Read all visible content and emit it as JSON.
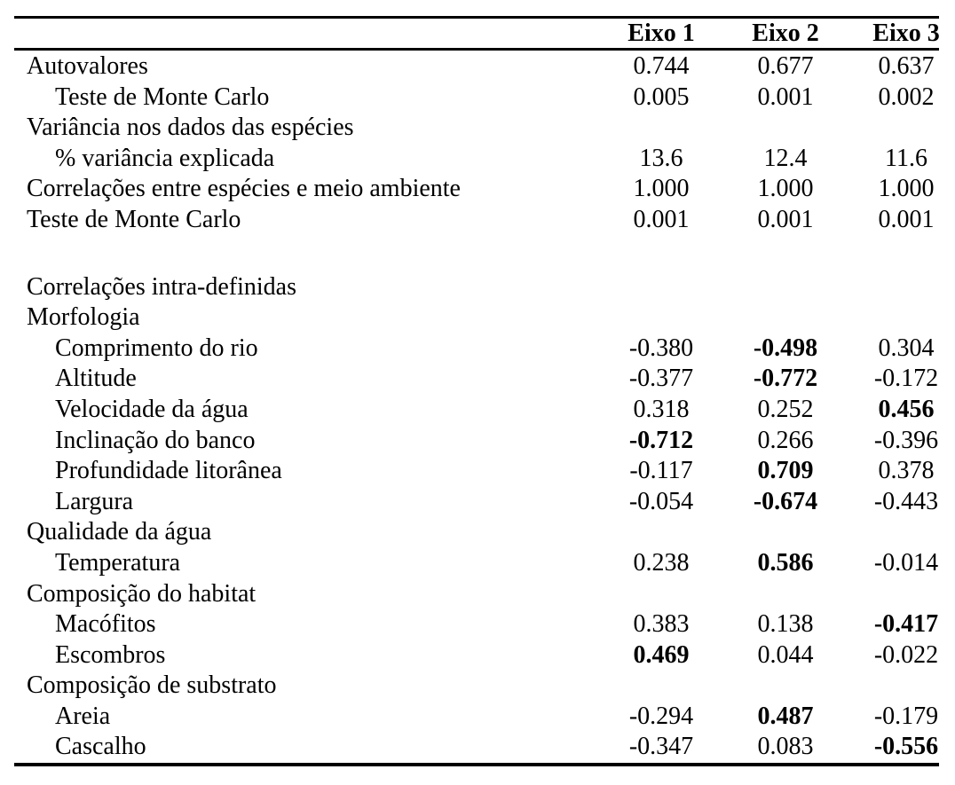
{
  "page": {
    "background_color": "#ffffff",
    "text_color": "#000000",
    "rule_color": "#000000"
  },
  "table": {
    "columns": [
      {
        "label": "Eixo 1"
      },
      {
        "label": "Eixo 2"
      },
      {
        "label": "Eixo 3"
      }
    ],
    "rows": [
      {
        "label": "Autovalores",
        "indent": false,
        "spacer": false,
        "values": [
          "0.744",
          "0.677",
          "0.637"
        ],
        "bold": [
          false,
          false,
          false
        ]
      },
      {
        "label": "Teste de Monte Carlo",
        "indent": true,
        "spacer": false,
        "values": [
          "0.005",
          "0.001",
          "0.002"
        ],
        "bold": [
          false,
          false,
          false
        ]
      },
      {
        "label": "Variância nos dados das espécies",
        "indent": false,
        "spacer": false,
        "values": [
          "",
          "",
          ""
        ],
        "bold": [
          false,
          false,
          false
        ]
      },
      {
        "label": "% variância explicada",
        "indent": true,
        "spacer": false,
        "values": [
          "13.6",
          "12.4",
          "11.6"
        ],
        "bold": [
          false,
          false,
          false
        ]
      },
      {
        "label": "Correlações entre espécies e meio ambiente",
        "indent": false,
        "spacer": false,
        "values": [
          "1.000",
          "1.000",
          "1.000"
        ],
        "bold": [
          false,
          false,
          false
        ]
      },
      {
        "label": "Teste de Monte Carlo",
        "indent": false,
        "spacer": false,
        "values": [
          "0.001",
          "0.001",
          "0.001"
        ],
        "bold": [
          false,
          false,
          false
        ]
      },
      {
        "label": "",
        "indent": false,
        "spacer": true,
        "values": [
          "",
          "",
          ""
        ],
        "bold": [
          false,
          false,
          false
        ]
      },
      {
        "label": "Correlações intra-definidas",
        "indent": false,
        "spacer": false,
        "values": [
          "",
          "",
          ""
        ],
        "bold": [
          false,
          false,
          false
        ]
      },
      {
        "label": "Morfologia",
        "indent": false,
        "spacer": false,
        "values": [
          "",
          "",
          ""
        ],
        "bold": [
          false,
          false,
          false
        ]
      },
      {
        "label": "Comprimento do rio",
        "indent": true,
        "spacer": false,
        "values": [
          "-0.380",
          "-0.498",
          "0.304"
        ],
        "bold": [
          false,
          true,
          false
        ]
      },
      {
        "label": "Altitude",
        "indent": true,
        "spacer": false,
        "values": [
          "-0.377",
          "-0.772",
          "-0.172"
        ],
        "bold": [
          false,
          true,
          false
        ]
      },
      {
        "label": "Velocidade da água",
        "indent": true,
        "spacer": false,
        "values": [
          "0.318",
          "0.252",
          "0.456"
        ],
        "bold": [
          false,
          false,
          true
        ]
      },
      {
        "label": "Inclinação do banco",
        "indent": true,
        "spacer": false,
        "values": [
          "-0.712",
          "0.266",
          "-0.396"
        ],
        "bold": [
          true,
          false,
          false
        ]
      },
      {
        "label": "Profundidade litorânea",
        "indent": true,
        "spacer": false,
        "values": [
          "-0.117",
          "0.709",
          "0.378"
        ],
        "bold": [
          false,
          true,
          false
        ]
      },
      {
        "label": "Largura",
        "indent": true,
        "spacer": false,
        "values": [
          "-0.054",
          "-0.674",
          "-0.443"
        ],
        "bold": [
          false,
          true,
          false
        ]
      },
      {
        "label": "Qualidade da água",
        "indent": false,
        "spacer": false,
        "values": [
          "",
          "",
          ""
        ],
        "bold": [
          false,
          false,
          false
        ]
      },
      {
        "label": "Temperatura",
        "indent": true,
        "spacer": false,
        "values": [
          "0.238",
          "0.586",
          "-0.014"
        ],
        "bold": [
          false,
          true,
          false
        ]
      },
      {
        "label": "Composição do habitat",
        "indent": false,
        "spacer": false,
        "values": [
          "",
          "",
          ""
        ],
        "bold": [
          false,
          false,
          false
        ]
      },
      {
        "label": "Macófitos",
        "indent": true,
        "spacer": false,
        "values": [
          "0.383",
          "0.138",
          "-0.417"
        ],
        "bold": [
          false,
          false,
          true
        ]
      },
      {
        "label": "Escombros",
        "indent": true,
        "spacer": false,
        "values": [
          "0.469",
          "0.044",
          "-0.022"
        ],
        "bold": [
          true,
          false,
          false
        ]
      },
      {
        "label": "Composição de substrato",
        "indent": false,
        "spacer": false,
        "values": [
          "",
          "",
          ""
        ],
        "bold": [
          false,
          false,
          false
        ]
      },
      {
        "label": "Areia",
        "indent": true,
        "spacer": false,
        "values": [
          "-0.294",
          "0.487",
          "-0.179"
        ],
        "bold": [
          false,
          true,
          false
        ]
      },
      {
        "label": "Cascalho",
        "indent": true,
        "spacer": false,
        "values": [
          "-0.347",
          "0.083",
          "-0.556"
        ],
        "bold": [
          false,
          false,
          true
        ]
      }
    ]
  }
}
